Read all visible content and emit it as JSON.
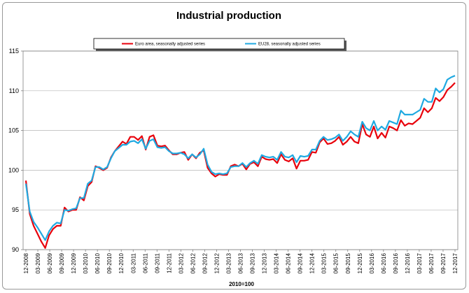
{
  "chart_data": {
    "type": "line",
    "title": "Industrial production",
    "xlabel": "2010=100",
    "ylabel": "",
    "ylim": [
      90,
      115
    ],
    "yticks": [
      "90",
      "95",
      "100",
      "105",
      "110",
      "115"
    ],
    "x_tick_labels": [
      "12-2008",
      "03-2009",
      "06-2009",
      "09-2009",
      "12-2009",
      "03-2010",
      "06-2010",
      "09-2010",
      "12-2010",
      "03-2011",
      "06-2011",
      "09-2011",
      "12-2011",
      "03-2012",
      "06-2012",
      "09-2012",
      "12-2012",
      "03-2013",
      "06-2013",
      "09-2013",
      "12-2013",
      "03-2014",
      "06-2014",
      "09-2014",
      "12-2014",
      "03-2015",
      "06-2015",
      "09-2015",
      "12-2015",
      "03-2016",
      "06-2016",
      "09-2016",
      "12-2016",
      "03-2017",
      "06-2017",
      "09-2017",
      "12-2017"
    ],
    "grid": true,
    "legend_position": "top",
    "series": [
      {
        "name": "Euro area, seasonally adjusted series",
        "color": "#e8000b",
        "values": [
          98.7,
          94.5,
          93.0,
          92.0,
          91.0,
          90.2,
          91.8,
          92.6,
          93.0,
          93.0,
          95.3,
          94.8,
          95.0,
          95.0,
          96.6,
          96.2,
          98.0,
          98.5,
          100.5,
          100.3,
          100.0,
          100.3,
          101.6,
          102.4,
          103.0,
          103.6,
          103.3,
          104.2,
          104.2,
          103.8,
          104.3,
          102.6,
          104.2,
          104.4,
          103.1,
          103.0,
          103.1,
          102.5,
          102.0,
          102.0,
          102.2,
          102.3,
          101.3,
          102.0,
          101.5,
          102.2,
          102.5,
          100.3,
          99.6,
          99.2,
          99.5,
          99.4,
          99.4,
          100.5,
          100.7,
          100.5,
          100.8,
          100.1,
          100.8,
          101.0,
          100.5,
          101.7,
          101.4,
          101.3,
          101.4,
          100.9,
          102.0,
          101.3,
          101.1,
          101.5,
          100.2,
          101.2,
          101.2,
          101.3,
          102.3,
          102.2,
          103.5,
          104.0,
          103.3,
          103.4,
          103.7,
          104.2,
          103.2,
          103.6,
          104.2,
          103.6,
          103.4,
          105.8,
          104.5,
          104.2,
          105.5,
          104.0,
          104.7,
          104.1,
          105.5,
          105.3,
          105.0,
          106.3,
          105.6,
          105.9,
          105.8,
          106.2,
          106.6,
          107.8,
          107.3,
          107.8,
          109.1,
          108.7,
          109.2,
          110.1,
          110.5,
          111.0
        ]
      },
      {
        "name": "EU28, seasonally adjusted series",
        "color": "#1fa9e1",
        "values": [
          98.3,
          94.8,
          93.5,
          92.8,
          92.0,
          91.2,
          92.3,
          93.0,
          93.4,
          93.3,
          95.0,
          94.9,
          95.1,
          95.2,
          96.5,
          96.5,
          98.3,
          98.7,
          100.4,
          100.4,
          100.1,
          100.4,
          101.5,
          102.4,
          102.8,
          103.2,
          103.2,
          103.6,
          103.7,
          103.4,
          103.9,
          102.7,
          103.7,
          103.9,
          102.9,
          102.8,
          102.9,
          102.4,
          102.1,
          102.1,
          102.2,
          102.0,
          101.5,
          102.0,
          101.6,
          102.0,
          102.7,
          100.7,
          99.8,
          99.5,
          99.6,
          99.5,
          99.6,
          100.4,
          100.5,
          100.5,
          100.9,
          100.4,
          100.9,
          101.2,
          100.8,
          101.9,
          101.7,
          101.6,
          101.7,
          101.3,
          102.3,
          101.7,
          101.6,
          101.9,
          101.0,
          101.8,
          101.7,
          101.8,
          102.6,
          102.6,
          103.7,
          104.2,
          103.8,
          103.9,
          104.1,
          104.5,
          103.7,
          104.2,
          104.9,
          104.5,
          104.2,
          106.1,
          105.3,
          105.0,
          106.2,
          105.0,
          105.5,
          105.1,
          106.2,
          106.0,
          105.8,
          107.5,
          107.0,
          107.0,
          107.0,
          107.3,
          107.6,
          109.0,
          108.6,
          108.6,
          110.3,
          109.8,
          110.2,
          111.4,
          111.7,
          111.9
        ]
      }
    ]
  }
}
